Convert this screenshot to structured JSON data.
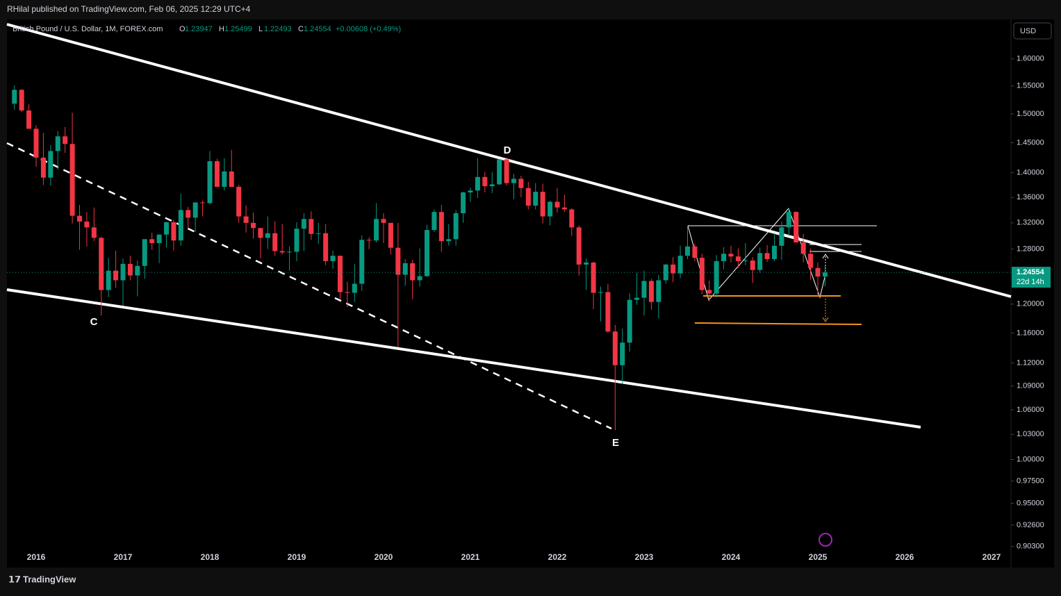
{
  "header": {
    "publisher": "RHilal published on TradingView.com, Feb 06, 2025 12:29 UTC+4",
    "currency": "USD",
    "brand": "TradingView",
    "open_prefix": "O",
    "high_prefix": "H",
    "low_prefix": "L",
    "close_prefix": "C",
    "change": "+0.00608 (+0.49%)",
    "countdown": "22d 14h"
  },
  "chart_data": {
    "type": "candlestick",
    "title": "British Pound / U.S. Dollar, 1M, FOREX.com",
    "open": [
      1.518,
      1.543,
      1.506,
      1.474,
      1.425,
      1.392,
      1.436,
      1.461,
      1.448,
      1.331,
      1.322,
      1.313,
      1.297,
      1.22,
      1.248,
      1.234,
      1.258,
      1.241,
      1.255,
      1.295,
      1.289,
      1.302,
      1.321,
      1.293,
      1.34,
      1.328,
      1.352,
      1.351,
      1.419,
      1.377,
      1.402,
      1.377,
      1.33,
      1.32,
      1.312,
      1.297,
      1.304,
      1.277,
      1.275,
      1.276,
      1.311,
      1.326,
      1.303,
      1.304,
      1.262,
      1.27,
      1.217,
      1.216,
      1.229,
      1.294,
      1.293,
      1.326,
      1.32,
      1.282,
      1.242,
      1.259,
      1.234,
      1.24,
      1.309,
      1.337,
      1.292,
      1.295,
      1.335,
      1.368,
      1.371,
      1.393,
      1.378,
      1.381,
      1.422,
      1.383,
      1.39,
      1.375,
      1.347,
      1.369,
      1.33,
      1.353,
      1.344,
      1.341,
      1.313,
      1.257,
      1.26,
      1.216,
      1.217,
      1.162,
      1.117,
      1.147,
      1.206,
      1.209,
      1.233,
      1.203,
      1.234,
      1.257,
      1.244,
      1.27,
      1.284,
      1.267,
      1.22,
      1.215,
      1.262,
      1.273,
      1.269,
      1.262,
      1.263,
      1.249,
      1.274,
      1.265,
      1.285,
      1.313,
      1.337,
      1.29,
      1.273,
      1.252,
      1.23947
    ],
    "high": [
      1.551,
      1.544,
      1.517,
      1.48,
      1.467,
      1.446,
      1.47,
      1.477,
      1.502,
      1.348,
      1.337,
      1.344,
      1.299,
      1.267,
      1.278,
      1.266,
      1.27,
      1.263,
      1.295,
      1.305,
      1.302,
      1.322,
      1.325,
      1.366,
      1.345,
      1.352,
      1.355,
      1.436,
      1.423,
      1.424,
      1.438,
      1.38,
      1.347,
      1.336,
      1.312,
      1.33,
      1.322,
      1.318,
      1.284,
      1.321,
      1.335,
      1.338,
      1.32,
      1.318,
      1.278,
      1.27,
      1.232,
      1.258,
      1.301,
      1.298,
      1.351,
      1.335,
      1.32,
      1.32,
      1.265,
      1.264,
      1.281,
      1.317,
      1.341,
      1.348,
      1.318,
      1.34,
      1.369,
      1.376,
      1.424,
      1.401,
      1.401,
      1.423,
      1.425,
      1.398,
      1.395,
      1.385,
      1.383,
      1.382,
      1.355,
      1.375,
      1.364,
      1.343,
      1.316,
      1.266,
      1.261,
      1.225,
      1.229,
      1.171,
      1.166,
      1.215,
      1.245,
      1.248,
      1.236,
      1.242,
      1.258,
      1.268,
      1.285,
      1.314,
      1.288,
      1.273,
      1.234,
      1.271,
      1.283,
      1.285,
      1.281,
      1.289,
      1.268,
      1.282,
      1.286,
      1.304,
      1.322,
      1.343,
      1.338,
      1.303,
      1.281,
      1.26,
      1.25499
    ],
    "low": [
      1.507,
      1.503,
      1.474,
      1.41,
      1.38,
      1.379,
      1.405,
      1.433,
      1.319,
      1.279,
      1.284,
      1.292,
      1.184,
      1.21,
      1.223,
      1.198,
      1.234,
      1.211,
      1.236,
      1.279,
      1.259,
      1.282,
      1.278,
      1.285,
      1.312,
      1.306,
      1.33,
      1.349,
      1.377,
      1.371,
      1.377,
      1.32,
      1.305,
      1.296,
      1.266,
      1.28,
      1.27,
      1.272,
      1.248,
      1.262,
      1.277,
      1.294,
      1.288,
      1.256,
      1.251,
      1.207,
      1.196,
      1.203,
      1.219,
      1.28,
      1.29,
      1.289,
      1.272,
      1.141,
      1.226,
      1.207,
      1.225,
      1.239,
      1.306,
      1.276,
      1.285,
      1.285,
      1.32,
      1.353,
      1.359,
      1.368,
      1.367,
      1.38,
      1.379,
      1.357,
      1.36,
      1.341,
      1.341,
      1.319,
      1.316,
      1.336,
      1.337,
      1.3,
      1.241,
      1.22,
      1.193,
      1.176,
      1.16,
      1.035,
      1.093,
      1.135,
      1.199,
      1.184,
      1.192,
      1.18,
      1.229,
      1.231,
      1.237,
      1.265,
      1.262,
      1.214,
      1.204,
      1.209,
      1.25,
      1.26,
      1.252,
      1.256,
      1.23,
      1.245,
      1.261,
      1.262,
      1.264,
      1.3,
      1.294,
      1.26,
      1.235,
      1.21,
      1.22493
    ],
    "close": [
      1.543,
      1.506,
      1.474,
      1.425,
      1.392,
      1.436,
      1.461,
      1.448,
      1.331,
      1.322,
      1.313,
      1.297,
      1.22,
      1.248,
      1.234,
      1.258,
      1.241,
      1.255,
      1.295,
      1.289,
      1.302,
      1.321,
      1.293,
      1.34,
      1.328,
      1.352,
      1.351,
      1.419,
      1.377,
      1.402,
      1.377,
      1.33,
      1.32,
      1.312,
      1.297,
      1.304,
      1.277,
      1.275,
      1.276,
      1.311,
      1.326,
      1.303,
      1.304,
      1.262,
      1.27,
      1.217,
      1.216,
      1.229,
      1.294,
      1.293,
      1.326,
      1.32,
      1.282,
      1.242,
      1.259,
      1.234,
      1.24,
      1.309,
      1.337,
      1.292,
      1.295,
      1.335,
      1.368,
      1.371,
      1.393,
      1.378,
      1.381,
      1.422,
      1.383,
      1.39,
      1.375,
      1.347,
      1.369,
      1.33,
      1.353,
      1.344,
      1.341,
      1.313,
      1.257,
      1.26,
      1.216,
      1.217,
      1.162,
      1.117,
      1.147,
      1.206,
      1.209,
      1.233,
      1.203,
      1.234,
      1.257,
      1.244,
      1.27,
      1.284,
      1.267,
      1.22,
      1.215,
      1.262,
      1.273,
      1.269,
      1.262,
      1.263,
      1.249,
      1.274,
      1.265,
      1.285,
      1.313,
      1.337,
      1.29,
      1.273,
      1.252,
      1.23947,
      1.24554
    ],
    "up_color": "#089981",
    "down_color": "#f23645",
    "log_scale": true,
    "grid": false,
    "ylim": [
      0.881,
      1.673
    ],
    "yticks": [
      {
        "value": 1.6,
        "label": "1.60000"
      },
      {
        "value": 1.55,
        "label": "1.55000"
      },
      {
        "value": 1.5,
        "label": "1.50000"
      },
      {
        "value": 1.45,
        "label": "1.45000"
      },
      {
        "value": 1.4,
        "label": "1.40000"
      },
      {
        "value": 1.36,
        "label": "1.36000"
      },
      {
        "value": 1.32,
        "label": "1.32000"
      },
      {
        "value": 1.28,
        "label": "1.28000"
      },
      {
        "value": 1.2,
        "label": "1.20000"
      },
      {
        "value": 1.16,
        "label": "1.16000"
      },
      {
        "value": 1.12,
        "label": "1.12000"
      },
      {
        "value": 1.09,
        "label": "1.09000"
      },
      {
        "value": 1.06,
        "label": "1.06000"
      },
      {
        "value": 1.03,
        "label": "1.03000"
      },
      {
        "value": 1.0,
        "label": "1.00000"
      },
      {
        "value": 0.975,
        "label": "0.97500"
      },
      {
        "value": 0.95,
        "label": "0.95000"
      },
      {
        "value": 0.926,
        "label": "0.92600"
      },
      {
        "value": 0.903,
        "label": "0.90300"
      }
    ],
    "year_labels": [
      "2016",
      "2017",
      "2018",
      "2019",
      "2020",
      "2021",
      "2022",
      "2023",
      "2024",
      "2025",
      "2026",
      "2027"
    ],
    "annotations": [
      "C",
      "D",
      "E"
    ]
  }
}
